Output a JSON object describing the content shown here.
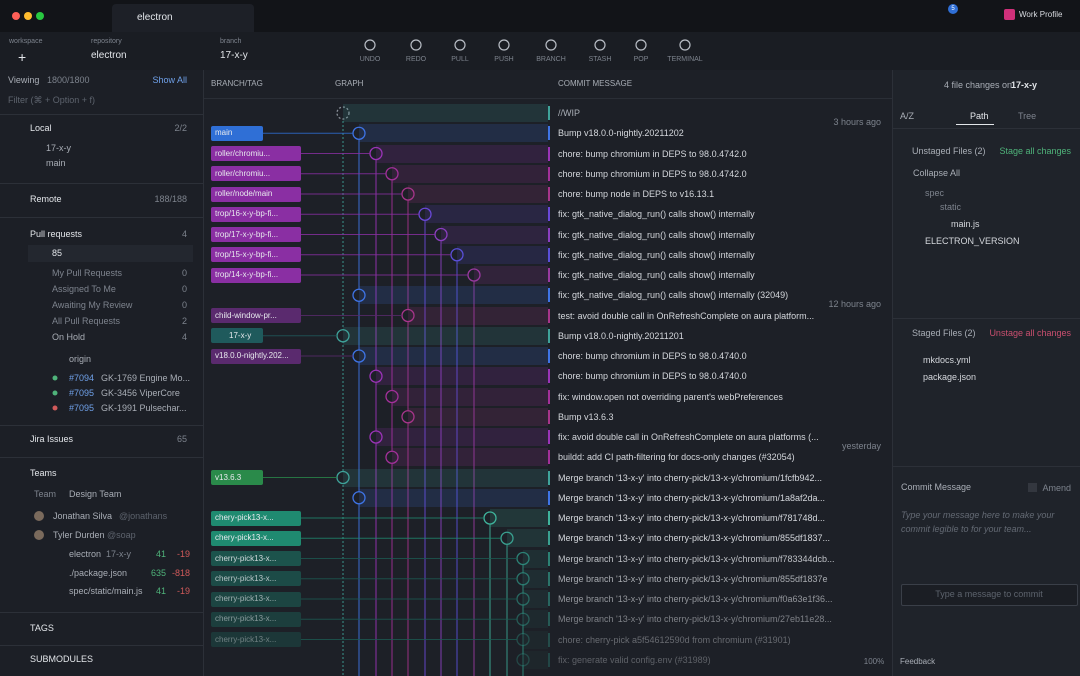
{
  "tabs": {
    "repo_tab": "electron",
    "notifications": "5",
    "profile": "Work Profile"
  },
  "toolbar": {
    "workspace_label": "workspace",
    "workspace_value": "+",
    "repository_label": "repository",
    "repository_value": "electron",
    "branch_label": "branch",
    "branch_value": "17-x-y",
    "actions": [
      "UNDO",
      "REDO",
      "PULL",
      "PUSH",
      "BRANCH",
      "STASH",
      "POP",
      "TERMINAL"
    ]
  },
  "sidebar": {
    "viewing": "Viewing",
    "viewing_count": "1800/1800",
    "show_all": "Show All",
    "filter": "Filter (⌘ + Option + f)",
    "local": {
      "title": "Local",
      "count": "2/2",
      "branches": [
        "17-x-y",
        "main"
      ]
    },
    "remote": {
      "title": "Remote",
      "count": "188/188"
    },
    "pull_requests": {
      "title": "Pull requests",
      "count": "4",
      "search": "85",
      "filters": [
        {
          "label": "My Pull Requests",
          "count": "0"
        },
        {
          "label": "Assigned To Me",
          "count": "0"
        },
        {
          "label": "Awaiting My Review",
          "count": "0"
        },
        {
          "label": "All Pull Requests",
          "count": "2"
        },
        {
          "label": "On Hold",
          "count": "4"
        }
      ],
      "origin": "origin",
      "items": [
        {
          "number": "#7094",
          "title": "GK-1769 Engine Mo..."
        },
        {
          "number": "#7095",
          "title": "GK-3456 ViperCore"
        },
        {
          "number": "#7095",
          "title": "GK-1991 Pulsechar..."
        }
      ]
    },
    "jira": {
      "title": "Jira Issues",
      "count": "65"
    },
    "teams": {
      "title": "Teams",
      "team_label": "Team",
      "team_value": "Design Team",
      "members": [
        {
          "name": "Jonathan Silva",
          "handle": "@jonathans"
        },
        {
          "name": "Tyler Durden",
          "handle": "@soap"
        }
      ],
      "files": [
        {
          "name": "electron",
          "branch": "17-x-y",
          "added": "41",
          "removed": "-19"
        },
        {
          "name": "./package.json",
          "added": "635",
          "removed": "-818"
        },
        {
          "name": "spec/static/main.js",
          "added": "41",
          "removed": "-19"
        }
      ]
    },
    "tags": "TAGS",
    "submodules": "SUBMODULES"
  },
  "graph": {
    "headers": {
      "branch": "BRANCH/TAG",
      "graph": "GRAPH",
      "message": "COMMIT MESSAGE"
    },
    "commits": [
      {
        "message": "//WIP",
        "time": "3 hours ago"
      },
      {
        "branch": "main",
        "message": "Bump v18.0.0-nightly.20211202"
      },
      {
        "branch": "roller/chromiu...",
        "message": "chore: bump chromium in DEPS to 98.0.4742.0"
      },
      {
        "branch": "roller/chromiu...",
        "message": "chore: bump chromium in DEPS to 98.0.4742.0"
      },
      {
        "branch": "roller/node/main",
        "message": "chore: bump node in DEPS to v16.13.1"
      },
      {
        "branch": "trop/16-x-y-bp-fi...",
        "message": "fix: gtk_native_dialog_run() calls show() internally"
      },
      {
        "branch": "trop/17-x-y-bp-fi...",
        "message": "fix: gtk_native_dialog_run() calls show() internally"
      },
      {
        "branch": "trop/15-x-y-bp-fi...",
        "message": "fix: gtk_native_dialog_run() calls show() internally"
      },
      {
        "branch": "trop/14-x-y-bp-fi...",
        "message": "fix: gtk_native_dialog_run() calls show() internally"
      },
      {
        "message": "fix: gtk_native_dialog_run() calls show() internally (32049)",
        "time": "12 hours ago"
      },
      {
        "branch": "child-window-pr...",
        "message": "test: avoid double call in OnRefreshComplete on aura platform..."
      },
      {
        "branch": "17-x-y",
        "message": "Bump v18.0.0-nightly.20211201"
      },
      {
        "branch": "v18.0.0-nightly.202...",
        "message": "chore: bump chromium in DEPS to 98.0.4740.0"
      },
      {
        "message": "chore: bump chromium in DEPS to 98.0.4740.0"
      },
      {
        "message": "fix: window.open not overriding parent's webPreferences"
      },
      {
        "message": "Bump v13.6.3"
      },
      {
        "message": "fix: avoid double call in OnRefreshComplete on aura platforms (...",
        "time": "yesterday"
      },
      {
        "message": "buildd: add CI path-filtering for docs-only changes (#32054)"
      },
      {
        "branch": "v13.6.3",
        "message": "Merge branch '13-x-y' into cherry-pick/13-x-y/chromium/1fcfb942..."
      },
      {
        "message": "Merge branch '13-x-y' into cherry-pick/13-x-y/chromium/1a8af2da..."
      },
      {
        "branch": "chery-pick13-x...",
        "message": "Merge branch '13-x-y' into cherry-pick/13-x-y/chromium/f781748d..."
      },
      {
        "branch": "chery-pick13-x...",
        "message": "Merge branch '13-x-y' into cherry-pick/13-x-y/chromium/855df1837..."
      },
      {
        "branch": "cherry-pick13-x...",
        "message": "Merge branch '13-x-y' into cherry-pick/13-x-y/chromium/f783344dcb..."
      },
      {
        "branch": "cherry-pick13-x...",
        "message": "Merge branch '13-x-y' into cherry-pick/13-x-y/chromium/855df1837e"
      },
      {
        "branch": "cherry-pick13-x...",
        "message": "Merge branch '13-x-y' into cherry-pick/13-x-y/chromium/f0a63e1f36..."
      },
      {
        "branch": "cherry-pick13-x...",
        "message": "Merge branch '13-x-y' into cherry-pick/13-x-y/chromium/27eb11e28..."
      },
      {
        "branch": "cherry-pick13-x...",
        "message": "chore: cherry-pick a5f54612590d from chromium (#31901)"
      },
      {
        "message": "fix: generate valid config.env (#31989)"
      }
    ]
  },
  "right_panel": {
    "changes_prefix": "4 file changes on",
    "changes_branch": "17-x-y",
    "sort": "A/Z",
    "view_path": "Path",
    "view_tree": "Tree",
    "unstaged": {
      "title": "Unstaged Files (2)",
      "action": "Stage all changes",
      "collapse": "Collapse All",
      "tree": [
        "spec",
        "static",
        "main.js",
        "ELECTRON_VERSION"
      ]
    },
    "staged": {
      "title": "Staged Files (2)",
      "action": "Unstage all changes",
      "files": [
        "mkdocs.yml",
        "package.json"
      ]
    },
    "commit": {
      "title": "Commit Message",
      "amend": "Amend",
      "placeholder": "Type your message here to make your commit legible to for your team...",
      "input": "Type a message to commit"
    }
  },
  "status": {
    "zoom": "100%",
    "feedback": "Feedback"
  }
}
